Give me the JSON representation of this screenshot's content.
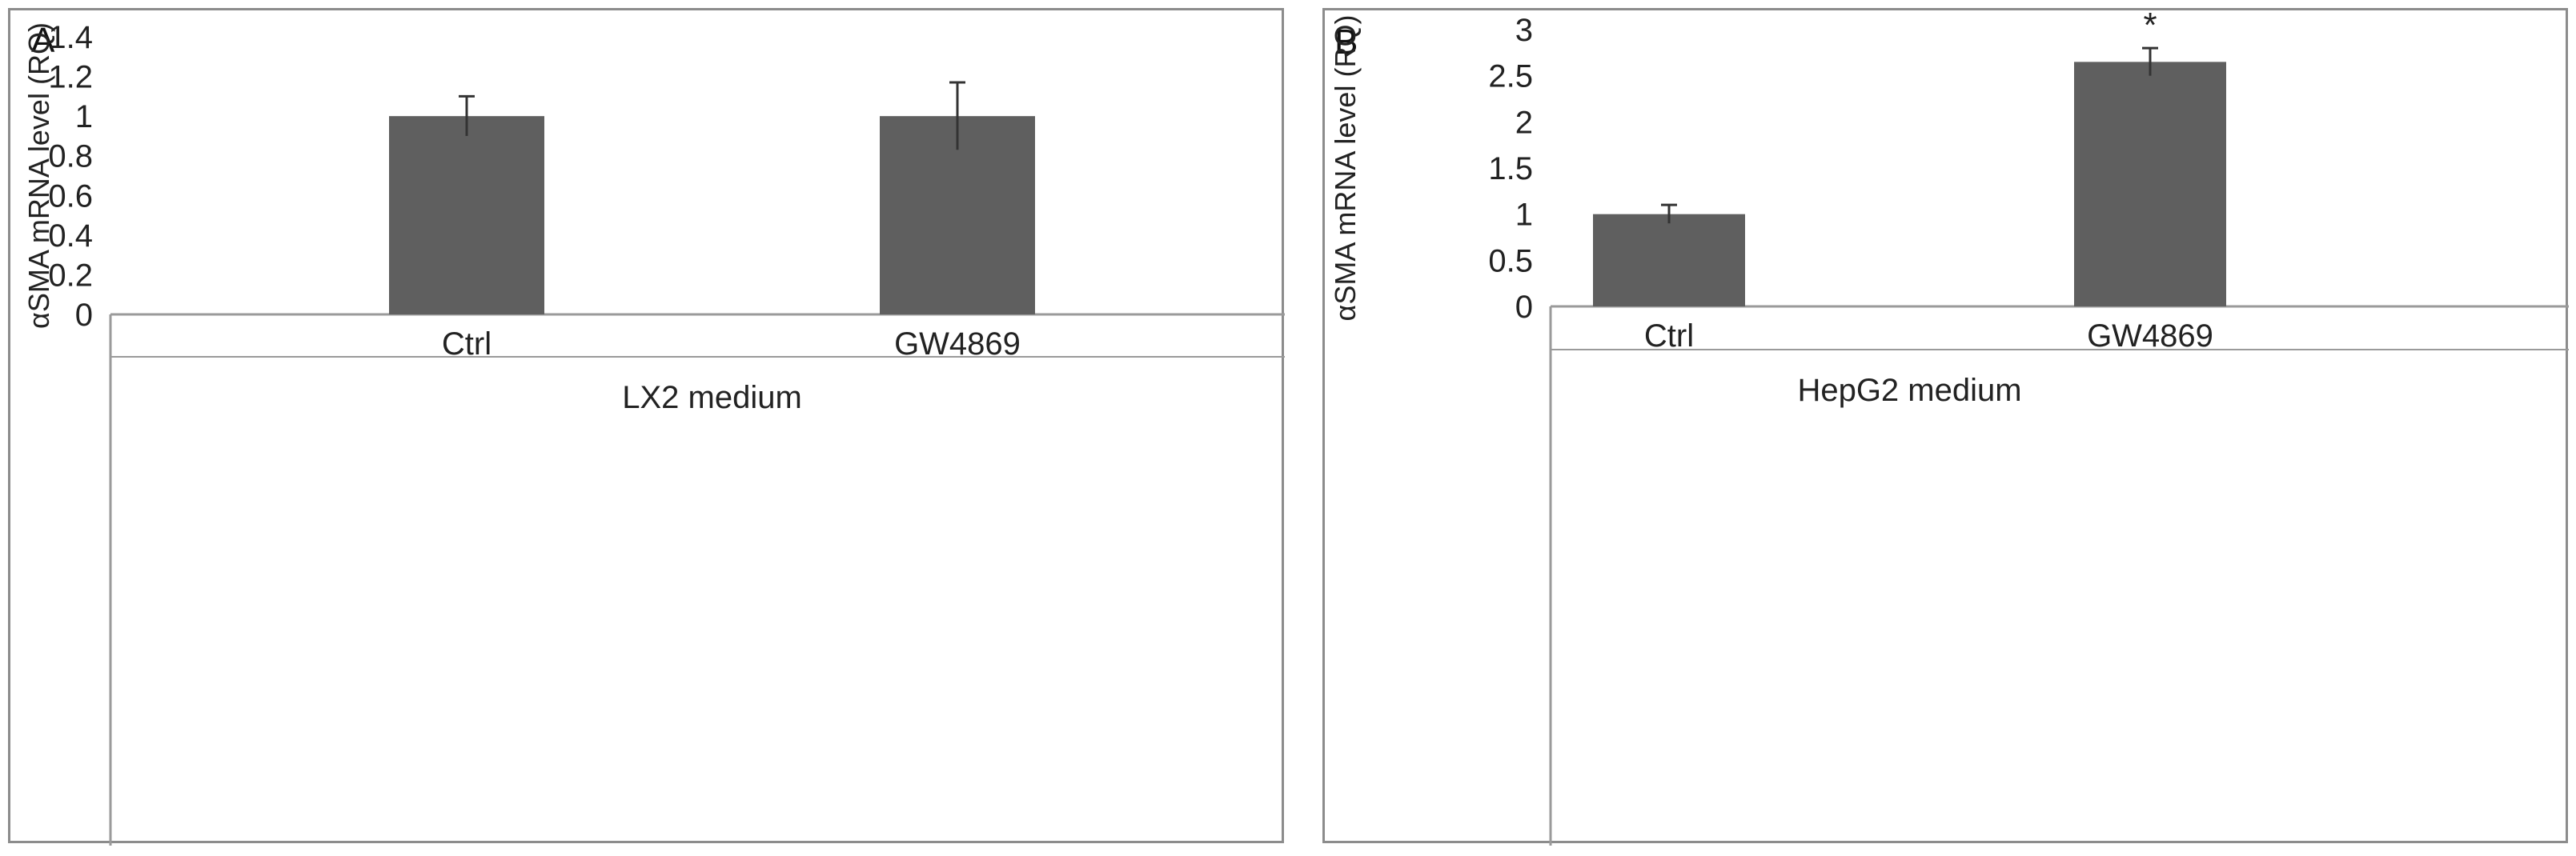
{
  "chart_data": [
    {
      "type": "bar",
      "panel_label": "A",
      "categories": [
        "Ctrl",
        "GW4869"
      ],
      "values": [
        1.0,
        1.0
      ],
      "error": [
        0.1,
        0.17
      ],
      "significance": [
        "",
        ""
      ],
      "ylabel": "αSMA mRNA level (RQ)",
      "group_label": "LX2 medium",
      "ylim": [
        0,
        1.4
      ],
      "yticks": [
        0,
        0.2,
        0.4,
        0.6,
        0.8,
        1,
        1.2,
        1.4
      ],
      "ytick_labels": [
        "0",
        "0.2",
        "0.4",
        "0.6",
        "0.8",
        "1",
        "1.2",
        "1.4"
      ],
      "bar_color": "#5f5f5f",
      "grid": false
    },
    {
      "type": "bar",
      "panel_label": "B",
      "categories": [
        "Ctrl",
        "GW4869"
      ],
      "values": [
        1.0,
        2.65
      ],
      "error": [
        0.1,
        0.15
      ],
      "significance": [
        "",
        "*"
      ],
      "ylabel": "αSMA mRNA level (RQ)",
      "group_label": "HepG2 medium",
      "ylim": [
        0,
        3
      ],
      "yticks": [
        0,
        0.5,
        1,
        1.5,
        2,
        2.5,
        3
      ],
      "ytick_labels": [
        "0",
        "0.5",
        "1",
        "1.5",
        "2",
        "2.5",
        "3"
      ],
      "bar_color": "#5f5f5f",
      "grid": false
    }
  ]
}
